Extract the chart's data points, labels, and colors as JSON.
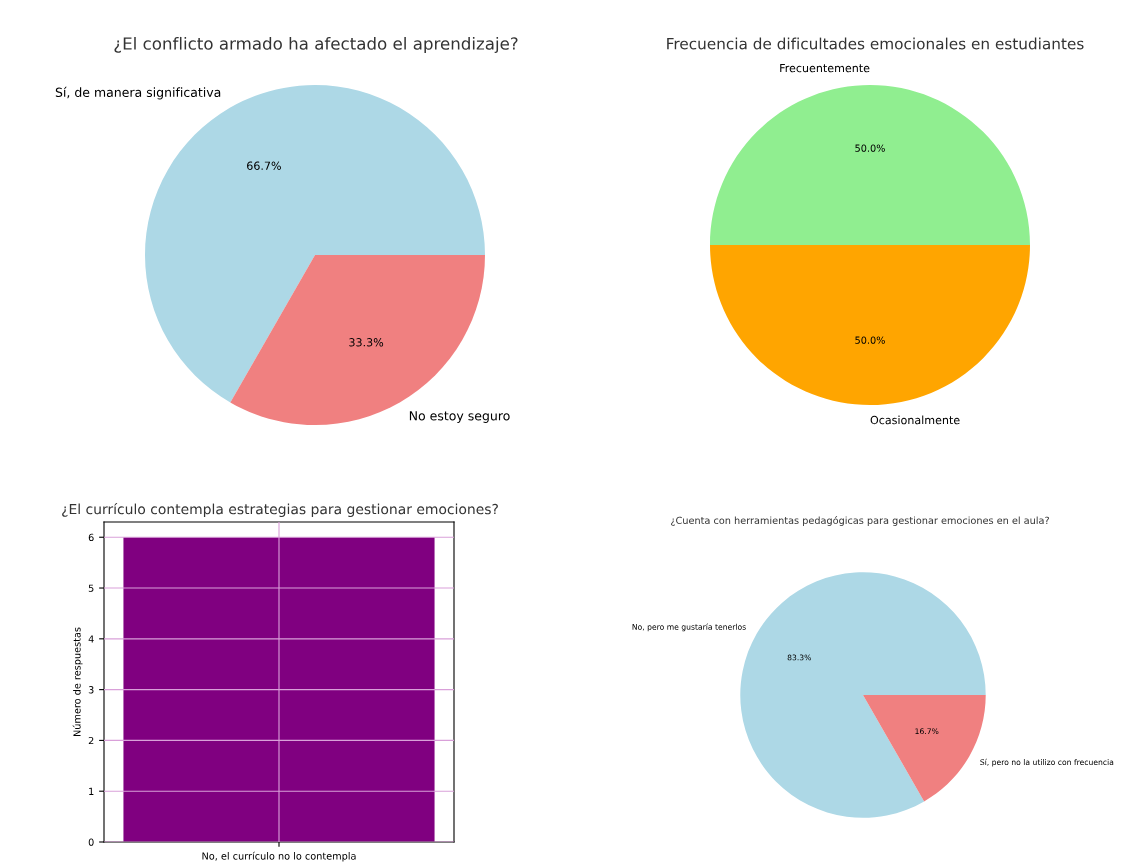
{
  "chart_data": [
    {
      "type": "pie",
      "title": "¿El conflicto armado ha afectado el aprendizaje?",
      "categories": [
        "Sí, de manera significativa",
        "No estoy seguro"
      ],
      "values": [
        66.7,
        33.3
      ],
      "value_labels": [
        "66.7%",
        "33.3%"
      ],
      "colors": [
        "#add8e6",
        "#f08080"
      ]
    },
    {
      "type": "pie",
      "title": "Frecuencia de dificultades emocionales en estudiantes",
      "categories": [
        "Frecuentemente",
        "Ocasionalmente"
      ],
      "values": [
        50,
        50
      ],
      "value_labels": [
        "50.0%",
        "50.0%"
      ],
      "colors": [
        "#90ee90",
        "#ffa500"
      ]
    },
    {
      "type": "bar",
      "title": "¿El currículo contempla estrategias para gestionar emociones?",
      "ylabel": "Número de respuestas",
      "categories": [
        "No, el currículo no lo contempla"
      ],
      "values": [
        6
      ],
      "color": "#800080",
      "ylim": [
        0,
        6.3
      ],
      "yticks": [
        0,
        1,
        2,
        3,
        4,
        5,
        6
      ],
      "grid": true
    },
    {
      "type": "pie",
      "title": "¿Cuenta con herramientas pedagógicas para gestionar emociones en el aula?",
      "categories": [
        "No, pero me gustaría tenerlos",
        "Sí, pero no la utilizo con frecuencia"
      ],
      "values": [
        83.3,
        16.7
      ],
      "value_labels": [
        "83.3%",
        "16.7%"
      ],
      "colors": [
        "#add8e6",
        "#f08080"
      ]
    }
  ]
}
